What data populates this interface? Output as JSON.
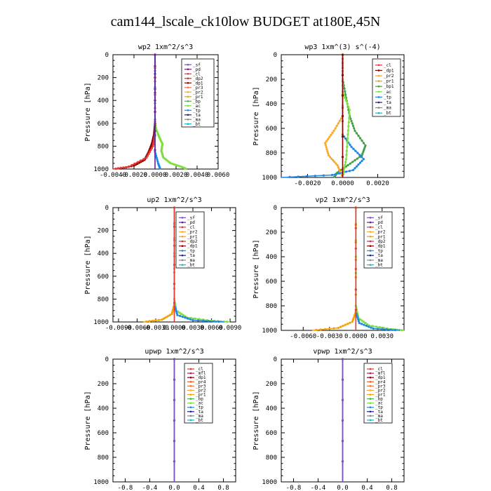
{
  "figure_title": "cam144_lscale_ck10low  BUDGET at180E,45N",
  "colors": {
    "sf": "#7b4fbf",
    "pd": "#6a1b9a",
    "cl": "#e53935",
    "mfl": "#c2185b",
    "dp1": "#8b0000",
    "dp2": "#d32f2f",
    "dp4": "#9c2a2a",
    "pr1": "#f4a300",
    "pr2": "#ffa726",
    "pr3": "#ff7043",
    "pr4": "#ff5722",
    "bp": "#4caf50",
    "bp1": "#43a047",
    "ac": "#7cdf3b",
    "tp": "#1e88e5",
    "ta": "#1a237e",
    "ma": "#888888",
    "bt": "#00bcd4"
  },
  "chart_data": [
    {
      "id": "wp2",
      "type": "line",
      "title": "wp2  1xm^2/s^3",
      "ylabel": "Pressure [hPa]",
      "xlim": [
        -0.004,
        0.006
      ],
      "ylim": [
        1000,
        0
      ],
      "xticks": [
        -0.004,
        -0.002,
        0.0,
        0.002,
        0.004,
        0.006
      ],
      "xticklabels": [
        "-0.0040",
        "-0.0020",
        "0.0000",
        "0.0020",
        "0.0040",
        "0.0060"
      ],
      "yticks": [
        0,
        200,
        400,
        600,
        800,
        1000
      ],
      "legend": [
        "_sf",
        "_pd",
        "_cl",
        "_dp2",
        "_dp1",
        "_pr3",
        "_pr2",
        "_pr1",
        "_bp",
        "_ac",
        "_tp",
        "_ta",
        "_ma",
        "_bt"
      ],
      "series": [
        {
          "name": "_ac",
          "color": "ac",
          "points": [
            [
              0,
              0
            ],
            [
              0,
              600
            ],
            [
              0.0001,
              650
            ],
            [
              0.0004,
              720
            ],
            [
              0.0007,
              780
            ],
            [
              0.0006,
              840
            ],
            [
              0.0008,
              900
            ],
            [
              0.0015,
              950
            ],
            [
              0.0025,
              980
            ],
            [
              0.003,
              1000
            ]
          ]
        },
        {
          "name": "_dp1",
          "color": "dp1",
          "points": [
            [
              0,
              0
            ],
            [
              0,
              600
            ],
            [
              -0.0001,
              700
            ],
            [
              -0.0003,
              780
            ],
            [
              -0.0006,
              850
            ],
            [
              -0.001,
              920
            ],
            [
              -0.002,
              970
            ],
            [
              -0.0035,
              1000
            ]
          ]
        },
        {
          "name": "_cl",
          "color": "cl",
          "points": [
            [
              0,
              0
            ],
            [
              0,
              700
            ],
            [
              -0.0002,
              800
            ],
            [
              -0.0008,
              900
            ],
            [
              -0.0025,
              980
            ],
            [
              -0.004,
              1000
            ]
          ]
        },
        {
          "name": "_tp",
          "color": "tp",
          "points": [
            [
              0,
              0
            ],
            [
              0,
              850
            ],
            [
              0.0003,
              950
            ],
            [
              0.0005,
              1000
            ]
          ]
        },
        {
          "name": "_pd",
          "color": "pd",
          "points": [
            [
              0,
              0
            ],
            [
              0,
              1000
            ]
          ]
        }
      ]
    },
    {
      "id": "wp3",
      "type": "line",
      "title": "wp3  1xm^(3) s^(-4)",
      "ylabel": "Pressure [hPa]",
      "xlim": [
        -0.0035,
        0.0035
      ],
      "ylim": [
        1000,
        0
      ],
      "xticks": [
        -0.002,
        0.0,
        0.002
      ],
      "xticklabels": [
        "-0.0020",
        "0.0000",
        "0.0020"
      ],
      "yticks": [
        0,
        200,
        400,
        600,
        800,
        1000
      ],
      "legend": [
        "_cl",
        "_dp1",
        "_pr2",
        "_pr1",
        "_bp1",
        "_ac",
        "_tp",
        "_ta",
        "_ma",
        "_bt"
      ],
      "series": [
        {
          "name": "_bp1",
          "color": "bp1",
          "points": [
            [
              0,
              0
            ],
            [
              0,
              200
            ],
            [
              0.0002,
              350
            ],
            [
              0.0004,
              500
            ],
            [
              0.0007,
              620
            ],
            [
              0.0013,
              740
            ],
            [
              0.0011,
              820
            ],
            [
              0.0003,
              900
            ],
            [
              -0.0003,
              960
            ],
            [
              -0.0005,
              1000
            ]
          ]
        },
        {
          "name": "_pr2",
          "color": "pr2",
          "points": [
            [
              0,
              0
            ],
            [
              0,
              500
            ],
            [
              -0.0005,
              620
            ],
            [
              -0.001,
              720
            ],
            [
              -0.0008,
              820
            ],
            [
              -0.0003,
              900
            ],
            [
              0,
              1000
            ]
          ]
        },
        {
          "name": "_tp",
          "color": "tp",
          "points": [
            [
              0,
              0
            ],
            [
              0,
              650
            ],
            [
              0.0005,
              750
            ],
            [
              0.0012,
              850
            ],
            [
              0.0006,
              940
            ],
            [
              -0.0006,
              980
            ],
            [
              -0.0035,
              1000
            ]
          ]
        },
        {
          "name": "_ac",
          "color": "ac",
          "points": [
            [
              0,
              0
            ],
            [
              0,
              300
            ],
            [
              0.0004,
              450
            ],
            [
              0.0003,
              650
            ],
            [
              0.0002,
              850
            ],
            [
              0,
              1000
            ]
          ]
        },
        {
          "name": "_dp1",
          "color": "dp1",
          "points": [
            [
              0,
              0
            ],
            [
              0,
              1000
            ]
          ]
        }
      ]
    },
    {
      "id": "up2",
      "type": "line",
      "title": "up2  1xm^2/s^3",
      "ylabel": "Pressure [hPa]",
      "xlim": [
        -0.0099,
        0.0099
      ],
      "ylim": [
        1000,
        0
      ],
      "xticks": [
        -0.009,
        -0.006,
        -0.003,
        0.0,
        0.003,
        0.006,
        0.009
      ],
      "xticklabels": [
        "-0.0090",
        "-0.0060",
        "-0.0030",
        "0.0000",
        "0.0030",
        "0.0060",
        "0.0090"
      ],
      "yticks": [
        0,
        200,
        400,
        600,
        800,
        1000
      ],
      "legend": [
        "_sf",
        "_pd",
        "_cl",
        "_pr2",
        "_pr1",
        "_dp2",
        "_dp1",
        "_tp",
        "_ta",
        "_ma",
        "_bt"
      ],
      "series": [
        {
          "name": "_dp1",
          "color": "ac",
          "points": [
            [
              0,
              0
            ],
            [
              0,
              800
            ],
            [
              0.0003,
              900
            ],
            [
              0.002,
              960
            ],
            [
              0.006,
              990
            ],
            [
              0.009,
              1000
            ]
          ]
        },
        {
          "name": "_tp",
          "color": "tp",
          "points": [
            [
              0,
              0
            ],
            [
              0,
              850
            ],
            [
              0.0005,
              940
            ],
            [
              0.003,
              985
            ],
            [
              0.008,
              1000
            ]
          ]
        },
        {
          "name": "_pr1",
          "color": "pr1",
          "points": [
            [
              0,
              0
            ],
            [
              0,
              850
            ],
            [
              -0.0004,
              930
            ],
            [
              -0.002,
              980
            ],
            [
              -0.005,
              1000
            ]
          ]
        },
        {
          "name": "_cl",
          "color": "cl",
          "points": [
            [
              0,
              0
            ],
            [
              0,
              1000
            ]
          ]
        }
      ]
    },
    {
      "id": "vp2",
      "type": "line",
      "title": "vp2  1xm^2/s^3",
      "ylabel": "Pressure [hPa]",
      "xlim": [
        -0.0085,
        0.0055
      ],
      "ylim": [
        1000,
        0
      ],
      "xticks": [
        -0.006,
        -0.003,
        0.0,
        0.003
      ],
      "xticklabels": [
        "-0.0060",
        "-0.0030",
        "0.0000",
        "0.0030"
      ],
      "yticks": [
        0,
        200,
        400,
        600,
        800,
        1000
      ],
      "legend": [
        "_sf",
        "_pd",
        "_cl",
        "_pr2",
        "_pr1",
        "_dp2",
        "_dp1",
        "_tp",
        "_ta",
        "_ma",
        "_bt"
      ],
      "series": [
        {
          "name": "_dp1",
          "color": "ac",
          "points": [
            [
              0,
              0
            ],
            [
              0,
              800
            ],
            [
              0.0003,
              900
            ],
            [
              0.0015,
              960
            ],
            [
              0.004,
              990
            ],
            [
              0.0055,
              1000
            ]
          ]
        },
        {
          "name": "_tp",
          "color": "tp",
          "points": [
            [
              0,
              0
            ],
            [
              0,
              850
            ],
            [
              0.0004,
              940
            ],
            [
              0.002,
              985
            ],
            [
              0.005,
              1000
            ]
          ]
        },
        {
          "name": "_pr1",
          "color": "pr1",
          "points": [
            [
              0,
              0
            ],
            [
              0,
              850
            ],
            [
              -0.0004,
              930
            ],
            [
              -0.002,
              980
            ],
            [
              -0.005,
              1000
            ]
          ]
        },
        {
          "name": "_cl",
          "color": "cl",
          "points": [
            [
              0,
              0
            ],
            [
              0,
              1000
            ]
          ]
        }
      ]
    },
    {
      "id": "upwp",
      "type": "line",
      "title": "upwp  1xm^2/s^3",
      "ylabel": "Pressure [hPa]",
      "xlim": [
        -1.0,
        1.0
      ],
      "ylim": [
        1000,
        0
      ],
      "xticks": [
        -0.8,
        -0.4,
        0.0,
        0.4,
        0.8
      ],
      "xticklabels": [
        "-0.8",
        "-0.4",
        "0.0",
        "0.4",
        "0.8"
      ],
      "yticks": [
        0,
        200,
        400,
        600,
        800,
        1000
      ],
      "legend": [
        "_cl",
        "_mfl",
        "_dp1",
        "_pr4",
        "_pr3",
        "_pr2",
        "_pr1",
        "_bp",
        "_ac",
        "_tp",
        "_ta",
        "_ma",
        "_bt"
      ],
      "series": [
        {
          "name": "_mfl",
          "color": "mfl",
          "points": [
            [
              0,
              0
            ],
            [
              0,
              1000
            ]
          ]
        },
        {
          "name": "_cl",
          "color": "sf",
          "points": [
            [
              0,
              0
            ],
            [
              0,
              1000
            ]
          ]
        }
      ]
    },
    {
      "id": "vpwp",
      "type": "line",
      "title": "vpwp  1xm^2/s^3",
      "ylabel": "Pressure [hPa]",
      "xlim": [
        -1.0,
        1.0
      ],
      "ylim": [
        1000,
        0
      ],
      "xticks": [
        -0.8,
        -0.4,
        0.0,
        0.4,
        0.8
      ],
      "xticklabels": [
        "-0.8",
        "-0.4",
        "0.0",
        "0.4",
        "0.8"
      ],
      "yticks": [
        0,
        200,
        400,
        600,
        800,
        1000
      ],
      "legend": [
        "_cl",
        "_mfl",
        "_dp1",
        "_pr4",
        "_pr3",
        "_pr2",
        "_pr1",
        "_bp",
        "_ac",
        "_tp",
        "_ta",
        "_ma",
        "_bt"
      ],
      "series": [
        {
          "name": "_mfl",
          "color": "mfl",
          "points": [
            [
              0,
              0
            ],
            [
              0,
              1000
            ]
          ]
        },
        {
          "name": "_cl",
          "color": "sf",
          "points": [
            [
              0,
              0
            ],
            [
              0,
              1000
            ]
          ]
        }
      ]
    }
  ]
}
